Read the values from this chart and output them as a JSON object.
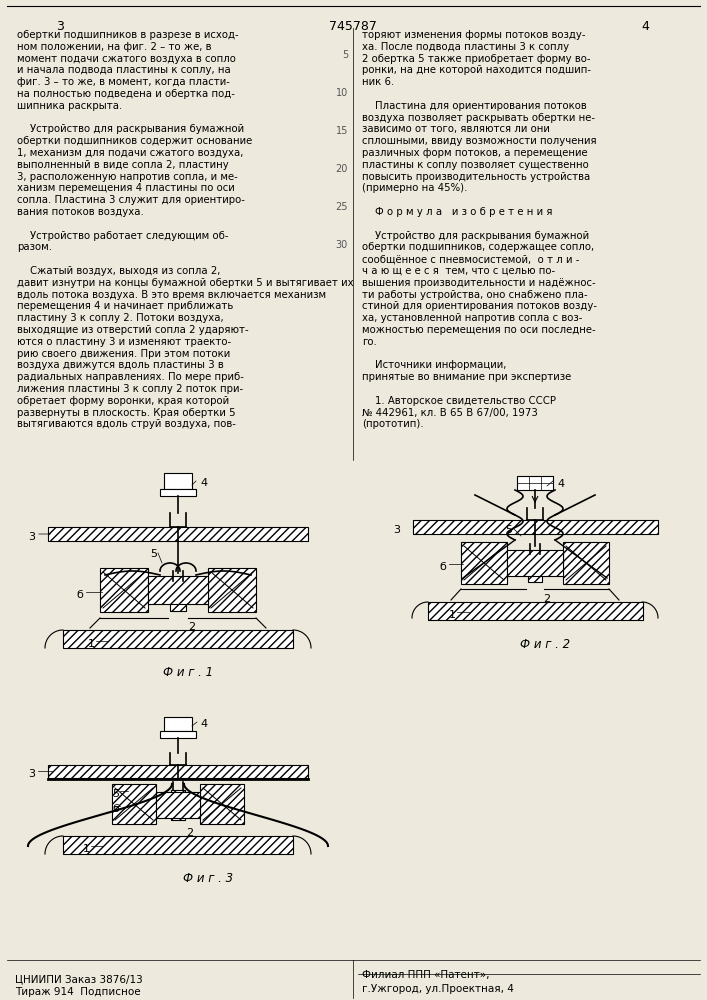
{
  "page_color": "#ede9dc",
  "title_number": "745787",
  "left_page_num": "3",
  "right_page_num": "4",
  "col1_lines": [
    "обертки подшипников в разрезе в исход-",
    "ном положении, на фиг. 2 – то же, в",
    "момент подачи сжатого воздуха в сопло",
    "и начала подвода пластины к соплу, на",
    "фиг. 3 – то же, в момент, когда пласти-",
    "на полностью подведена и обертка под-",
    "шипника раскрыта.",
    "",
    "    Устройство для раскрывания бумажной",
    "обертки подшипников содержит основание",
    "1, механизм для подачи сжатого воздуха,",
    "выполненный в виде сопла 2, пластину",
    "3, расположенную напротив сопла, и ме-",
    "ханизм перемещения 4 пластины по оси",
    "сопла. Пластина 3 служит для ориентиро-",
    "вания потоков воздуха.",
    "",
    "    Устройство работает следующим об-",
    "разом.",
    "",
    "    Сжатый воздух, выходя из сопла 2,",
    "давит изнутри на концы бумажной обертки 5 и вытягивает их",
    "вдоль потока воздуха. В это время включается механизм",
    "перемещения 4 и начинает приближать",
    "пластину 3 к соплу 2. Потоки воздуха,",
    "выходящие из отверстий сопла 2 ударяют-",
    "ются о пластину 3 и изменяют траекто-",
    "рию своего движения. При этом потоки",
    "воздуха движутся вдоль пластины 3 в",
    "радиальных направлениях. По мере приб-",
    "лижения пластины 3 к соплу 2 поток при-",
    "обретает форму воронки, края которой",
    "развернуты в плоскость. Края обертки 5",
    "вытягиваются вдоль струй воздуха, пов-"
  ],
  "col2_lines": [
    "торяют изменения формы потоков возду-",
    "ха. После подвода пластины 3 к соплу",
    "2 обертка 5 также приобретает форму во-",
    "ронки, на дне которой находится подшип-",
    "ник 6.",
    "",
    "    Пластина для ориентирования потоков",
    "воздуха позволяет раскрывать обертки не-",
    "зависимо от того, являются ли они",
    "сплошными, ввиду возможности получения",
    "различных форм потоков, а перемещение",
    "пластины к соплу позволяет существенно",
    "повысить производительность устройства",
    "(примерно на 45%).",
    "",
    "    Ф о р м у л а   и з о б р е т е н и я",
    "",
    "    Устройство для раскрывания бумажной",
    "обертки подшипников, содержащее сопло,",
    "сообщённое с пневмосистемой,  о т л и -",
    "ч а ю щ е е с я  тем, что с целью по-",
    "вышения производительности и надёжнос-",
    "ти работы устройства, оно снабжено пла-",
    "стиной для ориентирования потоков возду-",
    "ха, установленной напротив сопла с воз-",
    "можностью перемещения по оси последне-",
    "го.",
    "",
    "    Источники информации,",
    "принятые во внимание при экспертизе",
    "",
    "    1. Авторское свидетельство СССР",
    "№ 442961, кл. В 65 В 67/00, 1973",
    "(прототип)."
  ],
  "line_numbers_y": [
    48,
    86,
    124,
    162,
    200,
    238
  ],
  "line_numbers": [
    "5",
    "10",
    "15",
    "20",
    "25",
    "30"
  ],
  "bottom_left1": "ЦНИИПИ Заказ 3876/13",
  "bottom_left2": "Тираж 914  Подписное",
  "bottom_right1": "Филиал ППП «Патент»,",
  "bottom_right2": "г.Ужгород, ул.Проектная, 4"
}
